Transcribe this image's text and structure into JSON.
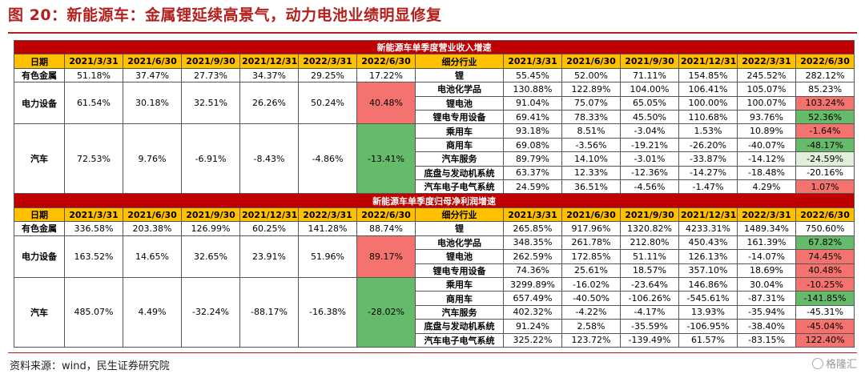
{
  "title": "图 20：新能源车：金属锂延续高景气，动力电池业绩明显修复",
  "source": "资料来源：wind，民生证券研究院",
  "watermark": "格隆汇",
  "colors": {
    "red_text": "#b3201e",
    "section_bar": "#c00000",
    "header_bar": "#ffc000",
    "highlight_red": "#f4736e",
    "highlight_green": "#66bb6a"
  },
  "header_left": [
    "日期",
    "2021/3/31",
    "2021/6/30",
    "2021/9/30",
    "2021/12/31",
    "2022/3/31",
    "2022/6/30"
  ],
  "header_right": [
    "细分行业",
    "2021/3/31",
    "2021/6/30",
    "2021/9/30",
    "2021/12/31",
    "2022/3/31",
    "2022/6/30"
  ],
  "sections": [
    {
      "title": "新能源车单季度营业收入增速",
      "groups": [
        {
          "label": "有色金属",
          "values": [
            {
              "v": "51.18%"
            },
            {
              "v": "37.47%"
            },
            {
              "v": "27.73%"
            },
            {
              "v": "34.37%"
            },
            {
              "v": "29.25%"
            },
            {
              "v": "17.22%"
            }
          ],
          "subs": [
            {
              "label": "锂",
              "values": [
                {
                  "v": "55.45%"
                },
                {
                  "v": "52.00%"
                },
                {
                  "v": "71.11%"
                },
                {
                  "v": "154.85%"
                },
                {
                  "v": "245.52%"
                },
                {
                  "v": "282.12%"
                }
              ]
            }
          ]
        },
        {
          "label": "电力设备",
          "values": [
            {
              "v": "61.54%"
            },
            {
              "v": "30.18%"
            },
            {
              "v": "32.51%"
            },
            {
              "v": "26.26%"
            },
            {
              "v": "50.24%"
            },
            {
              "v": "40.48%",
              "hl": "red"
            }
          ],
          "subs": [
            {
              "label": "电池化学品",
              "values": [
                {
                  "v": "130.88%"
                },
                {
                  "v": "122.89%"
                },
                {
                  "v": "104.00%"
                },
                {
                  "v": "106.41%"
                },
                {
                  "v": "105.07%"
                },
                {
                  "v": "85.23%"
                }
              ]
            },
            {
              "label": "锂电池",
              "values": [
                {
                  "v": "91.04%"
                },
                {
                  "v": "75.07%"
                },
                {
                  "v": "65.05%"
                },
                {
                  "v": "100.00%"
                },
                {
                  "v": "100.07%"
                },
                {
                  "v": "103.24%",
                  "hl": "red"
                }
              ]
            },
            {
              "label": "锂电专用设备",
              "values": [
                {
                  "v": "69.41%"
                },
                {
                  "v": "78.33%"
                },
                {
                  "v": "45.50%"
                },
                {
                  "v": "110.68%"
                },
                {
                  "v": "93.76%"
                },
                {
                  "v": "52.36%",
                  "hl": "green"
                }
              ]
            }
          ]
        },
        {
          "label": "汽车",
          "values": [
            {
              "v": "72.53%"
            },
            {
              "v": "9.76%"
            },
            {
              "v": "-6.91%"
            },
            {
              "v": "-8.43%"
            },
            {
              "v": "-4.86%"
            },
            {
              "v": "-13.41%",
              "hl": "green"
            }
          ],
          "subs": [
            {
              "label": "乘用车",
              "values": [
                {
                  "v": "93.18%"
                },
                {
                  "v": "8.51%"
                },
                {
                  "v": "-3.04%"
                },
                {
                  "v": "1.53%"
                },
                {
                  "v": "10.89%"
                },
                {
                  "v": "-1.64%",
                  "hl": "red"
                }
              ]
            },
            {
              "label": "商用车",
              "values": [
                {
                  "v": "69.08%"
                },
                {
                  "v": "-3.56%"
                },
                {
                  "v": "-19.21%"
                },
                {
                  "v": "-26.20%"
                },
                {
                  "v": "-40.07%"
                },
                {
                  "v": "-48.17%",
                  "hl": "green"
                }
              ]
            },
            {
              "label": "汽车服务",
              "values": [
                {
                  "v": "89.79%"
                },
                {
                  "v": "14.10%"
                },
                {
                  "v": "-3.01%"
                },
                {
                  "v": "-33.87%"
                },
                {
                  "v": "-14.12%"
                },
                {
                  "v": "-24.59%",
                  "hl": "pale"
                }
              ]
            },
            {
              "label": "底盘与发动机系统",
              "values": [
                {
                  "v": "63.37%"
                },
                {
                  "v": "12.33%"
                },
                {
                  "v": "-12.36%"
                },
                {
                  "v": "-14.27%"
                },
                {
                  "v": "-18.48%"
                },
                {
                  "v": "-20.16%"
                }
              ]
            },
            {
              "label": "汽车电子电气系统",
              "values": [
                {
                  "v": "24.59%"
                },
                {
                  "v": "36.51%"
                },
                {
                  "v": "-4.56%"
                },
                {
                  "v": "-1.47%"
                },
                {
                  "v": "4.29%"
                },
                {
                  "v": "1.07%",
                  "hl": "red"
                }
              ]
            }
          ]
        }
      ]
    },
    {
      "title": "新能源车单季度归母净利润增速",
      "groups": [
        {
          "label": "有色金属",
          "values": [
            {
              "v": "336.58%"
            },
            {
              "v": "203.38%"
            },
            {
              "v": "126.99%"
            },
            {
              "v": "60.25%"
            },
            {
              "v": "141.28%"
            },
            {
              "v": "88.74%"
            }
          ],
          "subs": [
            {
              "label": "锂",
              "values": [
                {
                  "v": "265.85%"
                },
                {
                  "v": "917.96%"
                },
                {
                  "v": "1320.82%"
                },
                {
                  "v": "4233.31%"
                },
                {
                  "v": "1489.34%"
                },
                {
                  "v": "750.60%"
                }
              ]
            }
          ]
        },
        {
          "label": "电力设备",
          "values": [
            {
              "v": "163.52%"
            },
            {
              "v": "14.65%"
            },
            {
              "v": "32.65%"
            },
            {
              "v": "23.91%"
            },
            {
              "v": "51.96%"
            },
            {
              "v": "89.17%",
              "hl": "red"
            }
          ],
          "subs": [
            {
              "label": "电池化学品",
              "values": [
                {
                  "v": "348.35%"
                },
                {
                  "v": "261.78%"
                },
                {
                  "v": "212.80%"
                },
                {
                  "v": "450.43%"
                },
                {
                  "v": "161.39%"
                },
                {
                  "v": "67.82%",
                  "hl": "green"
                }
              ]
            },
            {
              "label": "锂电池",
              "values": [
                {
                  "v": "262.59%"
                },
                {
                  "v": "172.85%"
                },
                {
                  "v": "51.11%"
                },
                {
                  "v": "126.13%"
                },
                {
                  "v": "-14.07%"
                },
                {
                  "v": "74.45%",
                  "hl": "red"
                }
              ]
            },
            {
              "label": "锂电专用设备",
              "values": [
                {
                  "v": "74.36%"
                },
                {
                  "v": "25.61%"
                },
                {
                  "v": "18.57%"
                },
                {
                  "v": "357.10%"
                },
                {
                  "v": "18.69%"
                },
                {
                  "v": "40.48%",
                  "hl": "red"
                }
              ]
            }
          ]
        },
        {
          "label": "汽车",
          "values": [
            {
              "v": "485.07%"
            },
            {
              "v": "4.49%"
            },
            {
              "v": "-32.24%"
            },
            {
              "v": "-88.17%"
            },
            {
              "v": "-16.38%"
            },
            {
              "v": "-28.02%",
              "hl": "green"
            }
          ],
          "subs": [
            {
              "label": "乘用车",
              "values": [
                {
                  "v": "3299.89%"
                },
                {
                  "v": "-16.02%"
                },
                {
                  "v": "-23.64%"
                },
                {
                  "v": "146.86%"
                },
                {
                  "v": "30.04%"
                },
                {
                  "v": "-10.25%",
                  "hl": "red"
                }
              ]
            },
            {
              "label": "商用车",
              "values": [
                {
                  "v": "657.49%"
                },
                {
                  "v": "-40.50%"
                },
                {
                  "v": "-106.26%"
                },
                {
                  "v": "-545.61%"
                },
                {
                  "v": "-87.31%"
                },
                {
                  "v": "-141.85%",
                  "hl": "green"
                }
              ]
            },
            {
              "label": "汽车服务",
              "values": [
                {
                  "v": "402.32%"
                },
                {
                  "v": "-4.22%"
                },
                {
                  "v": "-4.17%"
                },
                {
                  "v": "13.93%"
                },
                {
                  "v": "-35.94%"
                },
                {
                  "v": "-45.31%"
                }
              ]
            },
            {
              "label": "底盘与发动机系统",
              "values": [
                {
                  "v": "91.24%"
                },
                {
                  "v": "2.58%"
                },
                {
                  "v": "-35.59%"
                },
                {
                  "v": "-106.95%"
                },
                {
                  "v": "-38.40%"
                },
                {
                  "v": "-45.04%",
                  "hl": "red"
                }
              ]
            },
            {
              "label": "汽车电子电气系统",
              "values": [
                {
                  "v": "325.22%"
                },
                {
                  "v": "123.72%"
                },
                {
                  "v": "-139.49%"
                },
                {
                  "v": "61.57%"
                },
                {
                  "v": "-83.15%"
                },
                {
                  "v": "122.40%",
                  "hl": "red"
                }
              ]
            }
          ]
        }
      ]
    }
  ]
}
